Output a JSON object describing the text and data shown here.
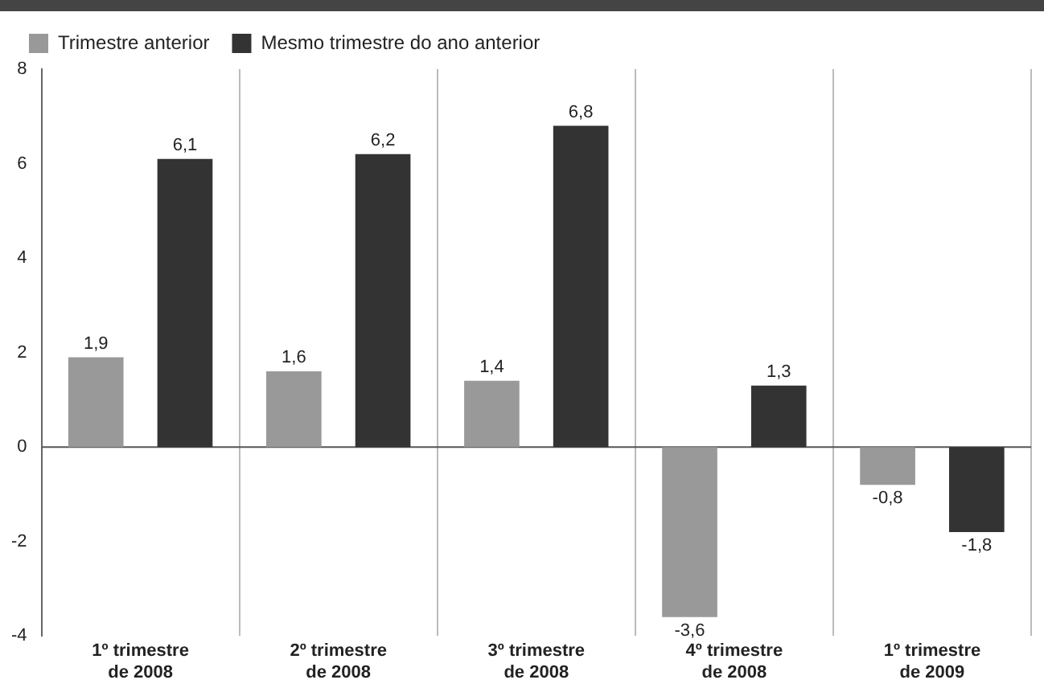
{
  "chart_data": {
    "type": "bar",
    "categories": [
      "1º trimestre de 2008",
      "2º trimestre de 2008",
      "3º trimestre de 2008",
      "4º trimestre de 2008",
      "1º trimestre de 2009"
    ],
    "series": [
      {
        "name": "Trimestre anterior",
        "color": "#999999",
        "values": [
          1.9,
          1.6,
          1.4,
          -3.6,
          -0.8
        ],
        "value_labels": [
          "1,9",
          "1,6",
          "1,4",
          "-3,6",
          "-0,8"
        ]
      },
      {
        "name": "Mesmo trimestre do ano anterior",
        "color": "#333333",
        "values": [
          6.1,
          6.2,
          6.8,
          1.3,
          -1.8
        ],
        "value_labels": [
          "6,1",
          "6,2",
          "6,8",
          "1,3",
          "-1,8"
        ]
      }
    ],
    "ylim": [
      -4,
      8
    ],
    "yticks": [
      -4,
      -2,
      0,
      2,
      4,
      6,
      8
    ],
    "grid": "x",
    "legend": "top left"
  }
}
